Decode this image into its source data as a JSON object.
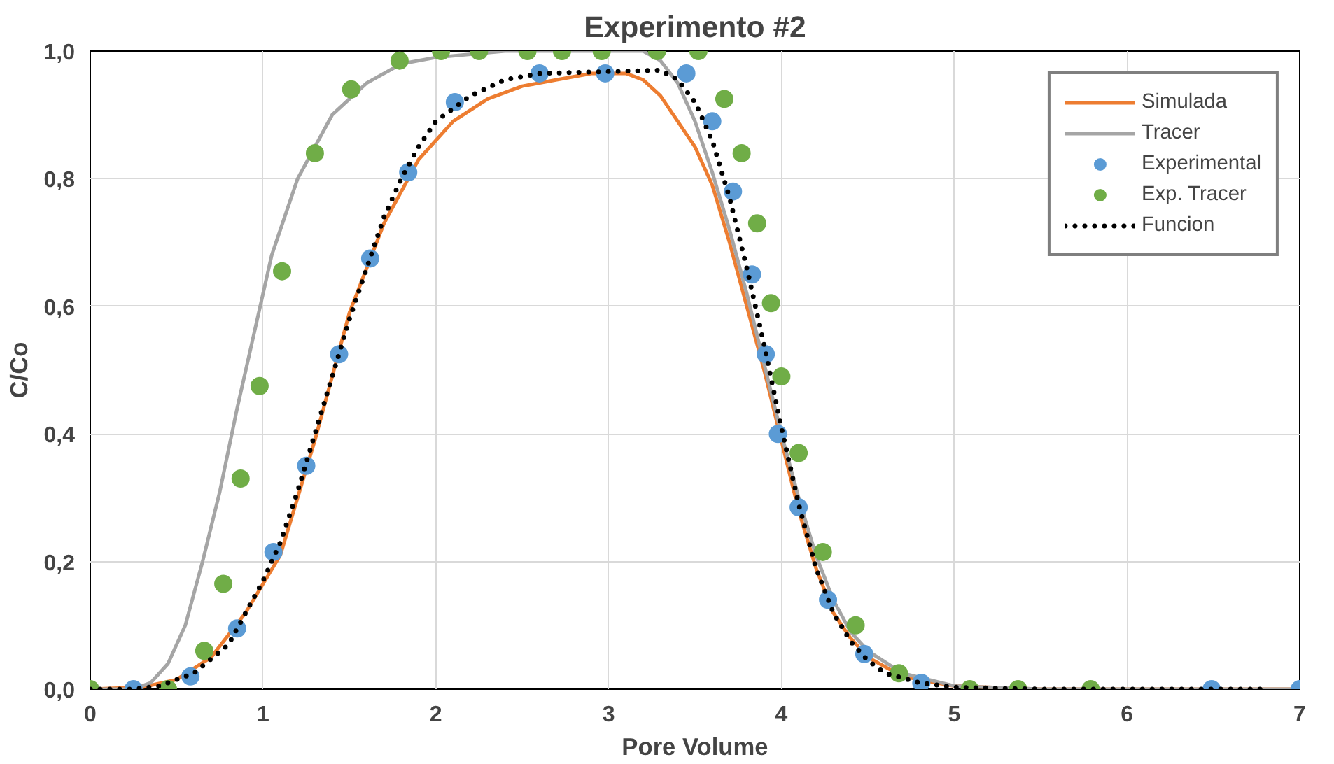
{
  "chart_data": {
    "type": "line",
    "title": "Experimento #2",
    "xlabel": "Pore Volume",
    "ylabel": "C/Co",
    "xlim": [
      0,
      7
    ],
    "xticks": [
      0,
      1,
      2,
      3,
      4,
      5,
      6,
      7
    ],
    "ylim": [
      0,
      1
    ],
    "yticks": [
      {
        "value": 0,
        "label": "0,0"
      },
      {
        "value": 0.2,
        "label": "0,2"
      },
      {
        "value": 0.4,
        "label": "0,4"
      },
      {
        "value": 0.6,
        "label": "0,6"
      },
      {
        "value": 0.8,
        "label": "0,8"
      },
      {
        "value": 1,
        "label": "1,0"
      }
    ],
    "grid": true,
    "legend": "top right",
    "series": [
      {
        "name": "Simulada",
        "color": "#ed7d31",
        "line_style": "solid",
        "x": [
          0,
          0.3,
          0.5,
          0.7,
          0.9,
          1.1,
          1.3,
          1.5,
          1.7,
          1.9,
          2.1,
          2.3,
          2.5,
          2.7,
          2.9,
          3.1,
          3.2,
          3.3,
          3.4,
          3.5,
          3.6,
          3.7,
          3.8,
          3.9,
          4.0,
          4.1,
          4.2,
          4.3,
          4.4,
          4.5,
          4.7,
          5.0,
          5.5,
          7
        ],
        "values": [
          0,
          0.003,
          0.015,
          0.05,
          0.12,
          0.21,
          0.39,
          0.59,
          0.73,
          0.83,
          0.89,
          0.925,
          0.945,
          0.955,
          0.965,
          0.965,
          0.955,
          0.93,
          0.89,
          0.85,
          0.79,
          0.7,
          0.6,
          0.5,
          0.39,
          0.28,
          0.19,
          0.12,
          0.08,
          0.05,
          0.02,
          0.005,
          0,
          0
        ]
      },
      {
        "name": "Tracer",
        "color": "#a5a5a5",
        "line_style": "solid",
        "x": [
          0,
          0.25,
          0.35,
          0.45,
          0.55,
          0.65,
          0.75,
          0.85,
          0.95,
          1.05,
          1.2,
          1.4,
          1.6,
          1.8,
          2.0,
          2.4,
          3.2,
          3.3,
          3.4,
          3.5,
          3.6,
          3.7,
          3.8,
          3.9,
          4.0,
          4.1,
          4.2,
          4.3,
          4.4,
          4.5,
          4.7,
          5.0,
          5.5,
          7
        ],
        "values": [
          0,
          0,
          0.01,
          0.04,
          0.1,
          0.2,
          0.31,
          0.44,
          0.56,
          0.68,
          0.8,
          0.9,
          0.95,
          0.98,
          0.99,
          1,
          1,
          0.985,
          0.95,
          0.89,
          0.81,
          0.72,
          0.62,
          0.51,
          0.4,
          0.3,
          0.21,
          0.14,
          0.09,
          0.06,
          0.025,
          0.005,
          0,
          0
        ]
      },
      {
        "name": "Experimental",
        "type": "scatter",
        "color": "#5b9bd5",
        "marker": "circle",
        "x": [
          0.25,
          0.58,
          0.85,
          1.06,
          1.25,
          1.44,
          1.62,
          1.84,
          2.11,
          2.6,
          2.98,
          3.45,
          3.6,
          3.72,
          3.83,
          3.91,
          3.98,
          4.1,
          4.27,
          4.48,
          4.81,
          6.49,
          7
        ],
        "values": [
          0,
          0.02,
          0.095,
          0.215,
          0.35,
          0.525,
          0.675,
          0.81,
          0.92,
          0.965,
          0.965,
          0.965,
          0.89,
          0.78,
          0.65,
          0.525,
          0.4,
          0.285,
          0.14,
          0.055,
          0.01,
          0,
          0
        ]
      },
      {
        "name": "Exp. Tracer",
        "type": "scatter",
        "color": "#70ad47",
        "marker": "circle",
        "x": [
          0,
          0.45,
          0.66,
          0.77,
          0.87,
          0.98,
          1.11,
          1.3,
          1.51,
          1.79,
          2.03,
          2.25,
          2.53,
          2.73,
          2.96,
          3.28,
          3.52,
          3.67,
          3.77,
          3.86,
          3.94,
          4.0,
          4.1,
          4.24,
          4.43,
          4.68,
          5.09,
          5.37,
          5.79
        ],
        "values": [
          0,
          0,
          0.06,
          0.165,
          0.33,
          0.475,
          0.655,
          0.84,
          0.94,
          0.985,
          1,
          1,
          1,
          1,
          1,
          1,
          1,
          0.925,
          0.84,
          0.73,
          0.605,
          0.49,
          0.37,
          0.215,
          0.1,
          0.025,
          0,
          0,
          0
        ]
      },
      {
        "name": "Funcion",
        "color": "#000000",
        "line_style": "dotted",
        "x": [
          0,
          0.25,
          0.4,
          0.6,
          0.8,
          1.0,
          1.1,
          1.2,
          1.3,
          1.4,
          1.5,
          1.6,
          1.7,
          1.8,
          1.9,
          2.0,
          2.2,
          2.4,
          2.6,
          3.3,
          3.4,
          3.5,
          3.6,
          3.7,
          3.8,
          3.9,
          4.0,
          4.1,
          4.2,
          4.3,
          4.4,
          4.5,
          4.6,
          4.8,
          5.0,
          5.5,
          6.8
        ],
        "values": [
          0,
          0,
          0.005,
          0.025,
          0.07,
          0.17,
          0.23,
          0.31,
          0.4,
          0.49,
          0.58,
          0.66,
          0.74,
          0.8,
          0.85,
          0.89,
          0.93,
          0.955,
          0.965,
          0.97,
          0.955,
          0.92,
          0.86,
          0.77,
          0.66,
          0.54,
          0.41,
          0.29,
          0.19,
          0.12,
          0.075,
          0.045,
          0.025,
          0.01,
          0.003,
          0,
          0
        ]
      }
    ]
  }
}
